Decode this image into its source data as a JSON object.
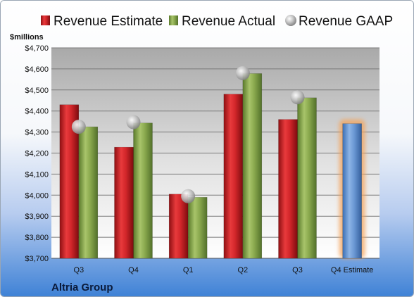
{
  "company": "Altria Group",
  "chart_data": {
    "type": "bar",
    "ylabel": "$millions",
    "ylim": [
      3700,
      4700
    ],
    "ystep": 100,
    "yprefix": "$",
    "grid": true,
    "legend_position": "top",
    "categories": [
      "Q3",
      "Q4",
      "Q1",
      "Q2",
      "Q3",
      "Q4 Estimate"
    ],
    "series": [
      {
        "name": "Revenue Estimate",
        "kind": "bar",
        "color": "#cc1f24",
        "values": [
          4430,
          4228,
          4005,
          4480,
          4360,
          null
        ]
      },
      {
        "name": "Revenue Actual",
        "kind": "bar",
        "color": "#86a64a",
        "values": [
          4325,
          4343,
          3990,
          4578,
          4463,
          null
        ]
      },
      {
        "name": "Revenue GAAP",
        "kind": "marker",
        "color": "#b9b9b9",
        "values": [
          4325,
          4347,
          3995,
          4580,
          4465,
          null
        ]
      },
      {
        "name": "",
        "kind": "bar",
        "color": "#6b98d4",
        "highlight": "#f4a35a",
        "values": [
          null,
          null,
          null,
          null,
          null,
          4340
        ]
      }
    ]
  }
}
